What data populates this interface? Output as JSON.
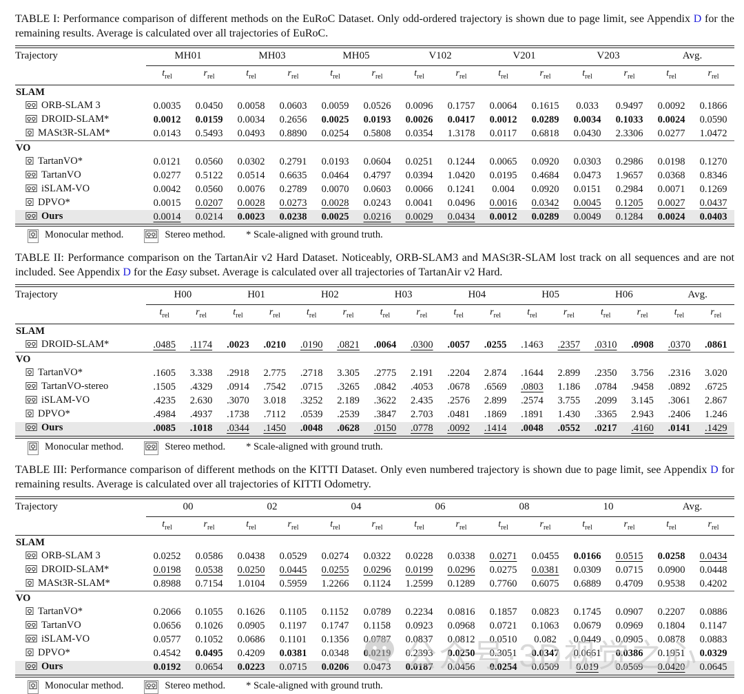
{
  "colors": {
    "link_blue": "#2222dd",
    "highlight_row": "#e8e8e8",
    "watermark_gray": "#c2c2c2"
  },
  "watermark": {
    "text": "公众号·3D视觉之心",
    "logo": "wechat-bubble-icon"
  },
  "header_labels": {
    "trajectory": "Trajectory",
    "t": "t",
    "r": "r",
    "sub": "rel"
  },
  "legend": {
    "mono_icon": "monocular-camera-icon",
    "mono_label": "Monocular method.",
    "stereo_icon": "stereo-camera-icon",
    "stereo_label": "Stereo method.",
    "star_label": "* Scale-aligned with ground truth."
  },
  "tables": [
    {
      "id": "euroc",
      "caption": [
        {
          "t": "TABLE I: Performance comparison of different methods on the EuRoC Dataset. Only odd-ordered trajectory is shown due to page limit, see Appendix "
        },
        {
          "t": "D",
          "s": "link"
        },
        {
          "t": " for the remaining results. Average is calculated over all trajectories of EuRoC."
        }
      ],
      "groups": [
        "MH01",
        "MH03",
        "MH05",
        "V102",
        "V201",
        "V203",
        "Avg."
      ],
      "sections": [
        {
          "name": "SLAM",
          "rows": [
            {
              "method": "ORB-SLAM 3",
              "icon": "stereo",
              "cells": [
                "0.0035",
                "0.0450",
                "0.0058",
                "0.0603",
                "0.0059",
                "0.0526",
                "0.0096",
                "0.1757",
                "0.0064",
                "0.1615",
                "0.033",
                "0.9497",
                "0.0092",
                "0.1866"
              ]
            },
            {
              "method": "DROID-SLAM*",
              "icon": "stereo",
              "cells": [
                "b|0.0012",
                "b|0.0159",
                "0.0034",
                "0.2656",
                "b|0.0025",
                "b|0.0193",
                "b|0.0026",
                "b|0.0417",
                "b|0.0012",
                "b|0.0289",
                "b|0.0034",
                "b|0.1033",
                "b|0.0024",
                "0.0590"
              ]
            },
            {
              "method": "MASt3R-SLAM*",
              "icon": "mono",
              "cells": [
                "0.0143",
                "0.5493",
                "0.0493",
                "0.8890",
                "0.0254",
                "0.5808",
                "0.0354",
                "1.3178",
                "0.0117",
                "0.6818",
                "0.0430",
                "2.3306",
                "0.0277",
                "1.0472"
              ]
            }
          ]
        },
        {
          "name": "VO",
          "rows": [
            {
              "method": "TartanVO*",
              "icon": "mono",
              "cells": [
                "0.0121",
                "0.0560",
                "0.0302",
                "0.2791",
                "0.0193",
                "0.0604",
                "0.0251",
                "0.1244",
                "0.0065",
                "0.0920",
                "0.0303",
                "0.2986",
                "0.0198",
                "0.1270"
              ]
            },
            {
              "method": "TartanVO",
              "icon": "stereo",
              "cells": [
                "0.0277",
                "0.5122",
                "0.0514",
                "0.6635",
                "0.0464",
                "0.4797",
                "0.0394",
                "1.0420",
                "0.0195",
                "0.4684",
                "0.0473",
                "1.9657",
                "0.0368",
                "0.8346"
              ]
            },
            {
              "method": "iSLAM-VO",
              "icon": "stereo",
              "cells": [
                "0.0042",
                "0.0560",
                "0.0076",
                "0.2789",
                "0.0070",
                "0.0603",
                "0.0066",
                "0.1241",
                "0.004",
                "0.0920",
                "0.0151",
                "0.2984",
                "0.0071",
                "0.1269"
              ]
            },
            {
              "method": "DPVO*",
              "icon": "mono",
              "cells": [
                "0.0015",
                "u|0.0207",
                "u|0.0028",
                "u|0.0273",
                "u|0.0028",
                "0.0243",
                "0.0041",
                "0.0496",
                "u|0.0016",
                "u|0.0342",
                "u|0.0045",
                "u|0.1205",
                "u|0.0027",
                "u|0.0437"
              ]
            },
            {
              "method": "Ours",
              "icon": "stereo",
              "highlight": true,
              "bold_name": true,
              "cells": [
                "u|0.0014",
                "0.0214",
                "b|0.0023",
                "b|0.0238",
                "b|0.0025",
                "u|0.0216",
                "u|0.0029",
                "u|0.0434",
                "b|0.0012",
                "b|0.0289",
                "0.0049",
                "0.1284",
                "b|0.0024",
                "b|0.0403"
              ]
            }
          ]
        }
      ]
    },
    {
      "id": "tartanair",
      "caption": [
        {
          "t": "TABLE II: Performance comparison on the TartanAir v2 Hard Dataset. Noticeably, ORB-SLAM3 and MASt3R-SLAM lost track on all sequences and are not included. See Appendix "
        },
        {
          "t": "D",
          "s": "link"
        },
        {
          "t": " for the "
        },
        {
          "t": "Easy",
          "s": "italic"
        },
        {
          "t": " subset. Average is calculated over all trajectories of TartanAir v2 Hard."
        }
      ],
      "groups": [
        "H00",
        "H01",
        "H02",
        "H03",
        "H04",
        "H05",
        "H06",
        "Avg."
      ],
      "sections": [
        {
          "name": "SLAM",
          "rows": [
            {
              "method": "DROID-SLAM*",
              "icon": "stereo",
              "cells": [
                "u|.0485",
                "u|.1174",
                "b|.0023",
                "b|.0210",
                "u|.0190",
                "u|.0821",
                "b|.0064",
                "u|.0300",
                "b|.0057",
                "b|.0255",
                ".1463",
                "u|.2357",
                "u|.0310",
                "b|.0908",
                "u|.0370",
                "b|.0861"
              ]
            }
          ]
        },
        {
          "name": "VO",
          "rows": [
            {
              "method": "TartanVO*",
              "icon": "mono",
              "cells": [
                ".1605",
                "3.338",
                ".2918",
                "2.775",
                ".2718",
                "3.305",
                ".2775",
                "2.191",
                ".2204",
                "2.874",
                ".1644",
                "2.899",
                ".2350",
                "3.756",
                ".2316",
                "3.020"
              ]
            },
            {
              "method": "TartanVO-stereo",
              "icon": "stereo",
              "cells": [
                ".1505",
                ".4329",
                ".0914",
                ".7542",
                ".0715",
                ".3265",
                ".0842",
                ".4053",
                ".0678",
                ".6569",
                "u|.0803",
                "1.186",
                ".0784",
                ".9458",
                ".0892",
                ".6725"
              ]
            },
            {
              "method": "iSLAM-VO",
              "icon": "stereo",
              "cells": [
                ".4235",
                "2.630",
                ".3070",
                "3.018",
                ".3252",
                "2.189",
                ".3622",
                "2.435",
                ".2576",
                "2.899",
                ".2574",
                "3.755",
                ".2099",
                "3.145",
                ".3061",
                "2.867"
              ]
            },
            {
              "method": "DPVO*",
              "icon": "mono",
              "cells": [
                ".4984",
                ".4937",
                ".1738",
                ".7112",
                ".0539",
                ".2539",
                ".3847",
                "2.703",
                ".0481",
                ".1869",
                ".1891",
                "1.430",
                ".3365",
                "2.943",
                ".2406",
                "1.246"
              ]
            },
            {
              "method": "Ours",
              "icon": "stereo",
              "highlight": true,
              "bold_name": true,
              "cells": [
                "b|.0085",
                "b|.1018",
                "u|.0344",
                "u|.1450",
                "b|.0048",
                "b|.0628",
                "u|.0150",
                "u|.0778",
                "u|.0092",
                "u|.1414",
                "b|.0048",
                "b|.0552",
                "b|.0217",
                "u|.4160",
                "b|.0141",
                "u|.1429"
              ]
            }
          ]
        }
      ]
    },
    {
      "id": "kitti",
      "caption": [
        {
          "t": "TABLE III: Performance comparison of different methods on the KITTI Dataset. Only even numbered trajectory is shown due to page limit, see Appendix "
        },
        {
          "t": "D",
          "s": "link"
        },
        {
          "t": " for remaining results. Average is calculated over all trajectories of KITTI Odometry."
        }
      ],
      "groups": [
        "00",
        "02",
        "04",
        "06",
        "08",
        "10",
        "Avg."
      ],
      "sections": [
        {
          "name": "SLAM",
          "rows": [
            {
              "method": "ORB-SLAM 3",
              "icon": "stereo",
              "cells": [
                "0.0252",
                "0.0586",
                "0.0438",
                "0.0529",
                "0.0274",
                "0.0322",
                "0.0228",
                "0.0338",
                "u|0.0271",
                "0.0455",
                "b|0.0166",
                "u|0.0515",
                "b|0.0258",
                "u|0.0434"
              ]
            },
            {
              "method": "DROID-SLAM*",
              "icon": "stereo",
              "cells": [
                "u|0.0198",
                "u|0.0538",
                "u|0.0250",
                "u|0.0445",
                "u|0.0255",
                "u|0.0296",
                "u|0.0199",
                "u|0.0296",
                "0.0275",
                "u|0.0381",
                "0.0309",
                "0.0715",
                "0.0900",
                "0.0448"
              ]
            },
            {
              "method": "MASt3R-SLAM*",
              "icon": "mono",
              "cells": [
                "0.8988",
                "0.7154",
                "1.0104",
                "0.5959",
                "1.2266",
                "0.1124",
                "1.2599",
                "0.1289",
                "0.7760",
                "0.6075",
                "0.6889",
                "0.4709",
                "0.9538",
                "0.4202"
              ]
            }
          ]
        },
        {
          "name": "VO",
          "rows": [
            {
              "method": "TartanVO*",
              "icon": "mono",
              "cells": [
                "0.2066",
                "0.1055",
                "0.1626",
                "0.1105",
                "0.1152",
                "0.0789",
                "0.2234",
                "0.0816",
                "0.1857",
                "0.0823",
                "0.1745",
                "0.0907",
                "0.2207",
                "0.0886"
              ]
            },
            {
              "method": "TartanVO",
              "icon": "stereo",
              "cells": [
                "0.0656",
                "0.1026",
                "0.0905",
                "0.1197",
                "0.1747",
                "0.1158",
                "0.0923",
                "0.0968",
                "0.0721",
                "0.1063",
                "0.0679",
                "0.0969",
                "0.1804",
                "0.1147"
              ]
            },
            {
              "method": "iSLAM-VO",
              "icon": "stereo",
              "cells": [
                "0.0577",
                "0.1052",
                "0.0686",
                "0.1101",
                "0.1356",
                "0.0787",
                "0.0837",
                "0.0812",
                "0.0510",
                "0.082",
                "0.0449",
                "0.0905",
                "0.0878",
                "0.0883"
              ]
            },
            {
              "method": "DPVO*",
              "icon": "mono",
              "cells": [
                "0.4542",
                "b|0.0495",
                "0.4209",
                "b|0.0381",
                "0.0348",
                "b|0.0219",
                "0.2393",
                "b|0.0250",
                "0.3051",
                "b|0.0347",
                "0.0661",
                "b|0.0386",
                "0.1951",
                "b|0.0329"
              ]
            },
            {
              "method": "Ours",
              "icon": "stereo",
              "highlight": true,
              "bold_name": true,
              "cells": [
                "b|0.0192",
                "0.0654",
                "b|0.0223",
                "0.0715",
                "b|0.0206",
                "0.0473",
                "b|0.0187",
                "0.0456",
                "b|0.0254",
                "0.0509",
                "u|0.019",
                "0.0569",
                "u|0.0420",
                "0.0645"
              ]
            }
          ]
        }
      ]
    }
  ]
}
